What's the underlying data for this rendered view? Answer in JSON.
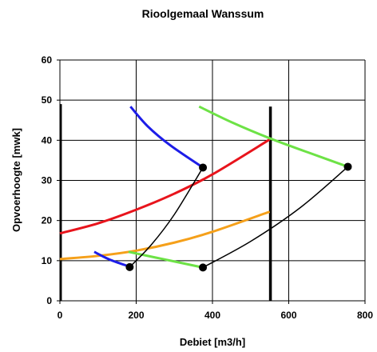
{
  "chart_data": {
    "type": "line",
    "title": "Rioolgemaal Wanssum",
    "xlabel": "Debiet  [m3/h]",
    "ylabel": "Opvoerhoogte  [mwk]",
    "xlim": [
      0,
      800
    ],
    "ylim": [
      0,
      60
    ],
    "xticks": [
      0,
      200,
      400,
      600,
      800
    ],
    "yticks": [
      0,
      10,
      20,
      30,
      40,
      50,
      60
    ],
    "grid": "on",
    "legend": "none",
    "series": [
      {
        "color": "#e8141c",
        "width": 3,
        "points": [
          [
            0,
            16.8
          ],
          [
            100,
            19.3
          ],
          [
            200,
            22.7
          ],
          [
            300,
            26.7
          ],
          [
            400,
            31.5
          ],
          [
            550,
            40.2
          ]
        ]
      },
      {
        "color": "#f5a01a",
        "width": 3,
        "points": [
          [
            0,
            10.4
          ],
          [
            100,
            11.2
          ],
          [
            200,
            12.5
          ],
          [
            300,
            14.5
          ],
          [
            400,
            17.2
          ],
          [
            550,
            22.2
          ]
        ]
      },
      {
        "color": "#1d1de8",
        "width": 3,
        "points": [
          [
            185,
            48.4
          ],
          [
            230,
            43.5
          ],
          [
            290,
            38.7
          ],
          [
            375,
            33.2
          ]
        ]
      },
      {
        "color": "#1d1de8",
        "width": 3,
        "points": [
          [
            90,
            12.2
          ],
          [
            130,
            10.3
          ],
          [
            183,
            8.5
          ]
        ]
      },
      {
        "color": "#6de246",
        "width": 3,
        "points": [
          [
            365,
            48.4
          ],
          [
            450,
            44.5
          ],
          [
            550,
            40.5
          ],
          [
            650,
            37.0
          ],
          [
            755,
            33.4
          ]
        ]
      },
      {
        "color": "#6de246",
        "width": 3,
        "points": [
          [
            180,
            12.2
          ],
          [
            260,
            10.6
          ],
          [
            375,
            8.3
          ]
        ]
      },
      {
        "color": "#000000",
        "width": 1.5,
        "points": [
          [
            183,
            8.4
          ],
          [
            240,
            14.0
          ],
          [
            300,
            21.5
          ],
          [
            375,
            33.2
          ]
        ]
      },
      {
        "color": "#000000",
        "width": 1.5,
        "points": [
          [
            375,
            8.3
          ],
          [
            500,
            14.8
          ],
          [
            630,
            23.2
          ],
          [
            755,
            33.4
          ]
        ]
      }
    ],
    "markers": [
      [
        183,
        8.4
      ],
      [
        375,
        33.2
      ],
      [
        375,
        8.3
      ],
      [
        755,
        33.4
      ]
    ],
    "vertical_lines": [
      {
        "x": 552,
        "y_from": 0,
        "y_to": 48.4,
        "color": "#000000",
        "width": 3.5
      },
      {
        "x": 3,
        "y_from": 0,
        "y_to": 49,
        "color": "#000000",
        "width": 2
      }
    ]
  }
}
